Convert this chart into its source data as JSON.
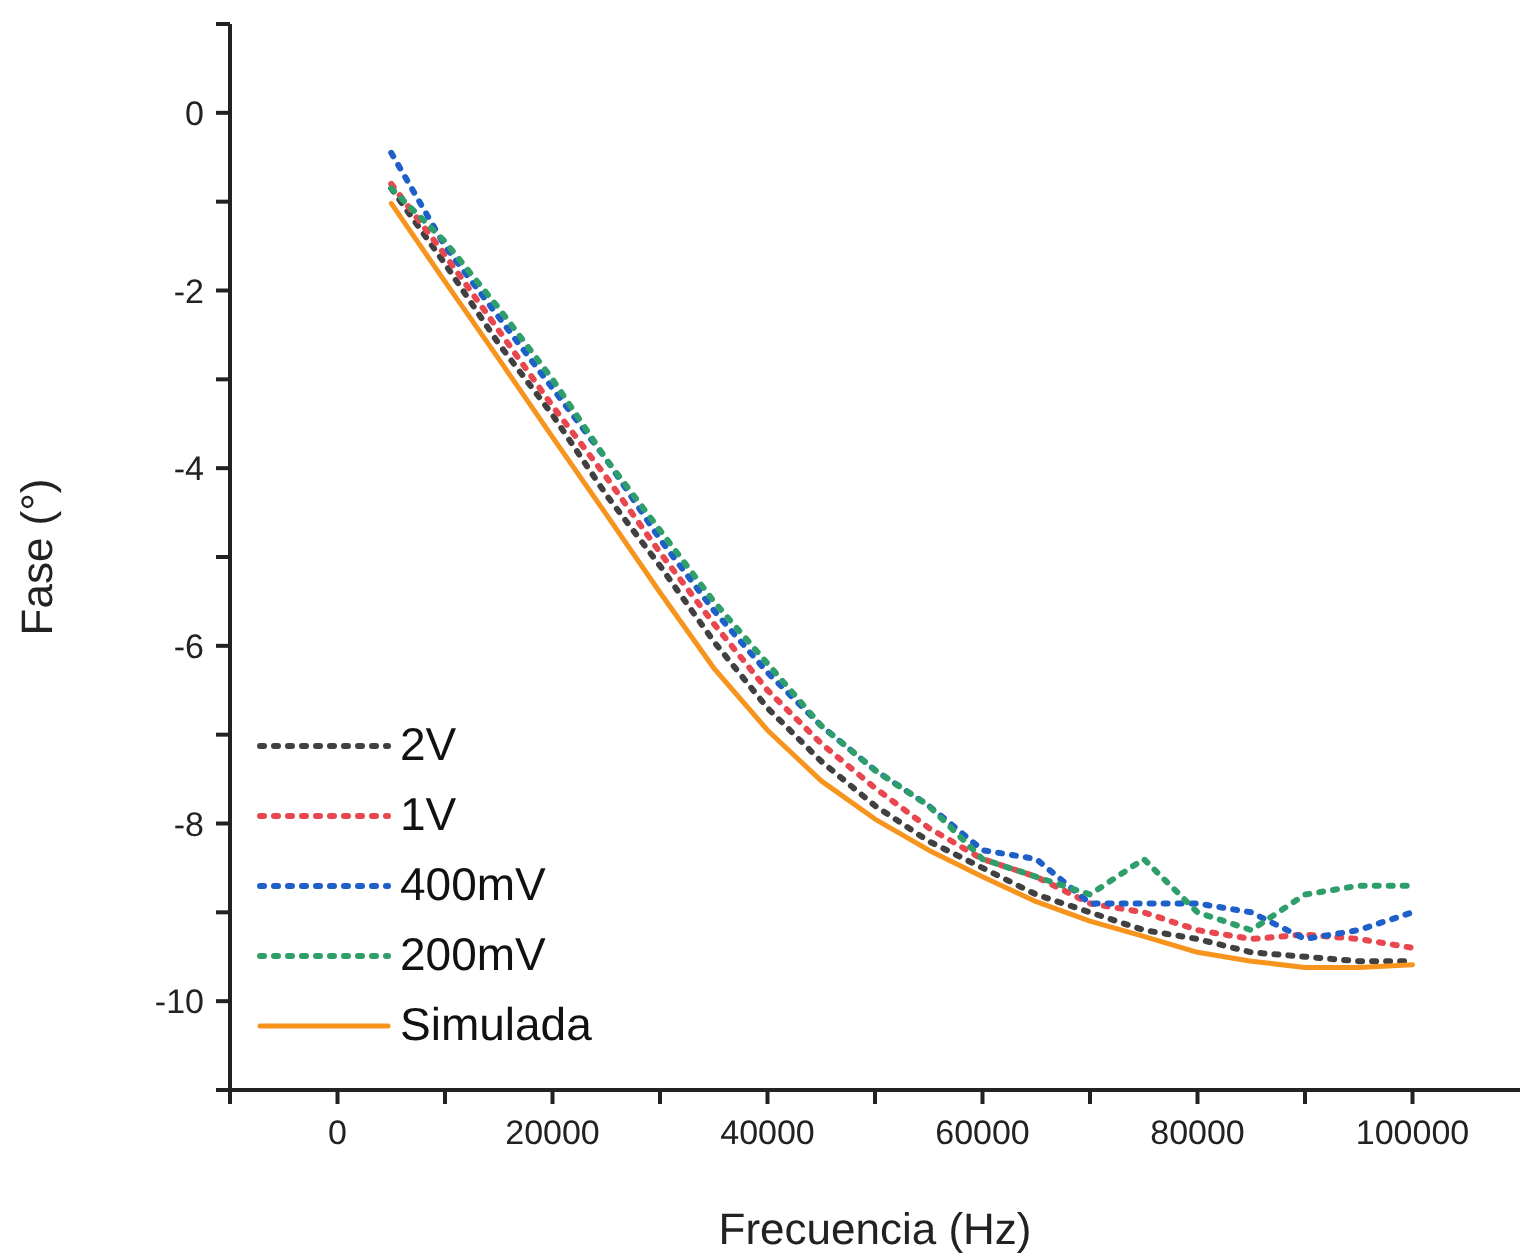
{
  "chart_data": {
    "type": "line",
    "xlabel": "Frecuencia (Hz)",
    "ylabel": "Fase (°)",
    "x": [
      5000,
      10000,
      15000,
      20000,
      25000,
      30000,
      35000,
      40000,
      45000,
      50000,
      55000,
      60000,
      65000,
      70000,
      75000,
      80000,
      85000,
      90000,
      95000,
      100000
    ],
    "series": [
      {
        "name": "2V",
        "color": "#404040",
        "line_style": "dotted",
        "values": [
          -0.85,
          -1.7,
          -2.6,
          -3.4,
          -4.3,
          -5.1,
          -5.95,
          -6.7,
          -7.3,
          -7.8,
          -8.2,
          -8.5,
          -8.8,
          -9.0,
          -9.2,
          -9.3,
          -9.45,
          -9.5,
          -9.55,
          -9.55
        ]
      },
      {
        "name": "1V",
        "color": "#e8474f",
        "line_style": "dotted",
        "values": [
          -0.8,
          -1.6,
          -2.45,
          -3.3,
          -4.1,
          -4.95,
          -5.75,
          -6.5,
          -7.1,
          -7.6,
          -8.05,
          -8.4,
          -8.6,
          -8.9,
          -9.0,
          -9.2,
          -9.3,
          -9.25,
          -9.3,
          -9.4
        ]
      },
      {
        "name": "400mV",
        "color": "#1f5fc8",
        "line_style": "dotted",
        "values": [
          -0.45,
          -1.5,
          -2.3,
          -3.1,
          -3.9,
          -4.8,
          -5.6,
          -6.3,
          -6.9,
          -7.4,
          -7.8,
          -8.3,
          -8.4,
          -8.9,
          -8.9,
          -8.9,
          -9.0,
          -9.3,
          -9.2,
          -9.0
        ]
      },
      {
        "name": "200mV",
        "color": "#2e9e6a",
        "line_style": "dotted",
        "values": [
          -0.85,
          -1.45,
          -2.2,
          -3.0,
          -3.9,
          -4.7,
          -5.5,
          -6.2,
          -6.9,
          -7.4,
          -7.8,
          -8.4,
          -8.6,
          -8.8,
          -8.4,
          -9.0,
          -9.2,
          -8.8,
          -8.7,
          -8.7
        ]
      },
      {
        "name": "Simulada",
        "color": "#f7941d",
        "line_style": "solid",
        "values": [
          -1.02,
          -1.9,
          -2.77,
          -3.65,
          -4.52,
          -5.4,
          -6.25,
          -6.95,
          -7.52,
          -7.95,
          -8.3,
          -8.6,
          -8.88,
          -9.1,
          -9.27,
          -9.45,
          -9.55,
          -9.62,
          -9.62,
          -9.59
        ]
      }
    ],
    "xlim": [
      -10000,
      110000
    ],
    "xticks": [
      {
        "value": -10000,
        "label": null
      },
      0,
      {
        "value": 10000,
        "label": null
      },
      20000,
      {
        "value": 30000,
        "label": null
      },
      40000,
      {
        "value": 50000,
        "label": null
      },
      60000,
      {
        "value": 70000,
        "label": null
      },
      80000,
      {
        "value": 90000,
        "label": null
      },
      100000
    ],
    "ylim": [
      -11,
      1
    ],
    "yticks": [
      {
        "value": -11,
        "label": null
      },
      -10,
      {
        "value": -9,
        "label": null
      },
      -8,
      {
        "value": -7,
        "label": null
      },
      -6,
      {
        "value": -5,
        "label": null
      },
      -4,
      {
        "value": -3,
        "label": null
      },
      -2,
      {
        "value": -1,
        "label": null
      },
      0,
      {
        "value": 1,
        "label": null
      }
    ],
    "legend": "bottom left",
    "marker": "none"
  }
}
